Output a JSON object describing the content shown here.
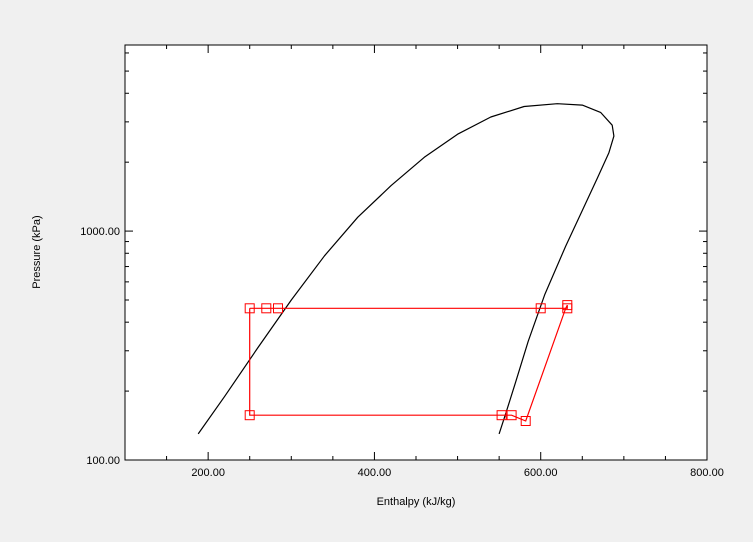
{
  "chart_data": {
    "type": "line",
    "xlabel": "Enthalpy (kJ/kg)",
    "ylabel": "Pressure (kPa)",
    "xlim": [
      100,
      800
    ],
    "ylim": [
      100,
      6500
    ],
    "yscale": "log",
    "x_tick_labels": [
      "200.00",
      "400.00",
      "600.00",
      "800.00"
    ],
    "x_ticks": [
      200,
      400,
      600,
      800
    ],
    "y_tick_labels": [
      "100.00",
      "1000.00"
    ],
    "y_ticks": [
      100,
      1000
    ],
    "grid": false,
    "series": [
      {
        "kind": "saturation-dome",
        "color": "#000000",
        "points": [
          [
            188,
            130
          ],
          [
            220,
            190
          ],
          [
            260,
            310
          ],
          [
            300,
            500
          ],
          [
            340,
            780
          ],
          [
            380,
            1150
          ],
          [
            420,
            1580
          ],
          [
            460,
            2100
          ],
          [
            500,
            2650
          ],
          [
            540,
            3150
          ],
          [
            580,
            3500
          ],
          [
            620,
            3600
          ],
          [
            650,
            3550
          ],
          [
            672,
            3300
          ],
          [
            686,
            2900
          ],
          [
            688,
            2600
          ],
          [
            682,
            2200
          ],
          [
            668,
            1700
          ],
          [
            650,
            1230
          ],
          [
            630,
            860
          ],
          [
            605,
            530
          ],
          [
            585,
            330
          ],
          [
            570,
            220
          ],
          [
            558,
            160
          ],
          [
            550,
            130
          ]
        ]
      },
      {
        "kind": "cycle",
        "color": "#ff0000",
        "points": [
          [
            250,
            460
          ],
          [
            284,
            460
          ],
          [
            270,
            460
          ],
          [
            600,
            460
          ],
          [
            632,
            460
          ],
          [
            632,
            475
          ],
          [
            630,
            460
          ],
          [
            582,
            148
          ],
          [
            565,
            157
          ],
          [
            553,
            157
          ],
          [
            250,
            157
          ],
          [
            250,
            460
          ]
        ],
        "markers": [
          [
            250,
            460
          ],
          [
            270,
            460
          ],
          [
            284,
            460
          ],
          [
            600,
            460
          ],
          [
            632,
            460
          ],
          [
            632,
            475
          ],
          [
            582,
            148
          ],
          [
            565,
            157
          ],
          [
            553,
            157
          ],
          [
            250,
            157
          ]
        ]
      }
    ]
  }
}
